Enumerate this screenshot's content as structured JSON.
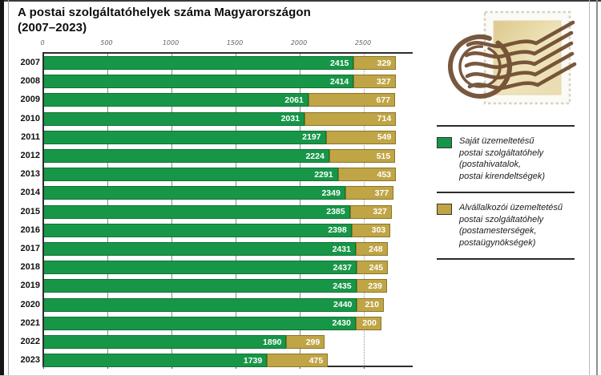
{
  "page": {
    "title_line1": "A postai szolgáltatóhelyek száma Magyarországon",
    "title_line2": "(2007–2023)"
  },
  "chart_data": {
    "type": "bar",
    "orientation": "horizontal",
    "stacked": true,
    "title": "A postai szolgáltatóhelyek száma Magyarországon (2007–2023)",
    "categories": [
      "2007",
      "2008",
      "2009",
      "2010",
      "2011",
      "2012",
      "2013",
      "2014",
      "2015",
      "2016",
      "2017",
      "2018",
      "2019",
      "2020",
      "2021",
      "2022",
      "2023"
    ],
    "series": [
      {
        "name": "Saját üzemeltetésű postai szolgáltatóhely (postahivatalok, postai kirendeltségek)",
        "color": "#189648",
        "values": [
          2415,
          2414,
          2061,
          2031,
          2197,
          2224,
          2291,
          2349,
          2385,
          2398,
          2431,
          2437,
          2435,
          2440,
          2430,
          1890,
          1739
        ]
      },
      {
        "name": "Alvállalkozói üzemeltetésű postai szolgáltatóhely (postamesterségek, postaügynökségek)",
        "color": "#bfa545",
        "values": [
          329,
          327,
          677,
          714,
          549,
          515,
          453,
          377,
          327,
          303,
          248,
          245,
          239,
          210,
          200,
          299,
          475
        ]
      }
    ],
    "x_ticks": [
      0,
      500,
      1000,
      1500,
      2000,
      2500
    ],
    "xlim": [
      0,
      2887
    ],
    "dotted_gridline": 2500,
    "grid": "vertical",
    "value_labels": true,
    "legend_position": "right"
  },
  "legend": {
    "items": [
      {
        "swatch_color": "#189648",
        "label": "Saját üzemeltetésű\npostai szolgáltatóhely\n(postahivatalok,\npostai kirendeltségek)"
      },
      {
        "swatch_color": "#bfa545",
        "label": "Alvállalkozói üzemeltetésű\npostai szolgáltatóhely\n(postamesterségek,\npostaügynökségek)"
      }
    ]
  },
  "decoration": {
    "icon": "postage-stamp-postmark-icon",
    "stamp_paper_color": "#e4d29a",
    "postmark_color": "#6d4a2e"
  }
}
